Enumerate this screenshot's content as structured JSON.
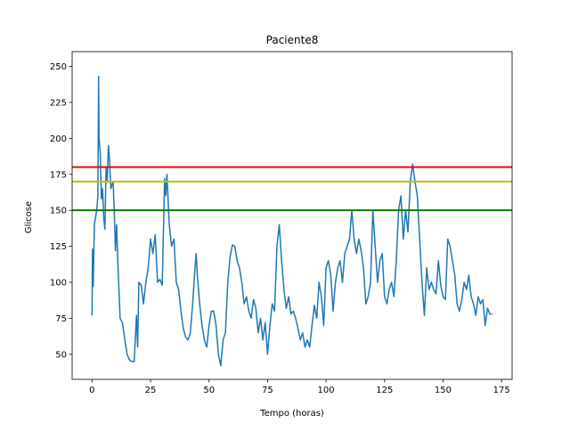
{
  "chart_data": {
    "type": "line",
    "title": "Paciente8",
    "xlabel": "Tempo (horas)",
    "ylabel": "Glicose",
    "x": [
      0,
      0.2,
      0.5,
      1,
      2,
      2.5,
      2.8,
      3,
      3.5,
      4,
      4.5,
      5,
      5.5,
      6,
      6.5,
      7,
      7.5,
      8,
      9,
      9.5,
      10,
      10.5,
      11,
      12,
      13,
      14,
      15,
      16,
      17,
      18,
      19,
      19.5,
      20,
      21,
      22,
      23,
      24,
      25,
      26,
      27,
      28,
      29,
      30,
      31,
      31.5,
      32,
      33,
      34,
      35,
      36,
      37,
      38,
      39,
      40,
      41,
      42,
      43,
      44,
      44.5,
      45,
      46,
      47,
      48,
      49,
      50,
      51,
      52,
      53,
      54,
      55,
      56,
      57,
      58,
      59,
      60,
      61,
      62,
      63,
      64,
      65,
      66,
      67,
      68,
      69,
      70,
      71,
      72,
      73,
      74,
      75,
      76,
      77,
      78,
      79,
      80,
      81,
      82,
      83,
      84,
      85,
      86,
      87,
      88,
      89,
      90,
      91,
      92,
      93,
      94,
      95,
      96,
      97,
      98,
      99,
      100,
      101,
      102,
      103,
      104,
      105,
      106,
      107,
      108,
      109,
      110,
      111,
      112,
      113,
      114,
      115,
      116,
      117,
      118,
      119,
      120,
      121,
      122,
      123,
      124,
      125,
      126,
      127,
      128,
      129,
      130,
      131,
      132,
      133,
      134,
      135,
      136,
      137,
      138,
      139,
      140,
      141,
      142,
      143,
      144,
      145,
      146,
      147,
      148,
      149,
      150,
      151,
      152,
      153,
      154,
      155,
      156,
      157,
      158,
      159,
      160,
      161,
      162,
      163,
      164,
      165,
      166,
      167,
      168,
      169,
      170,
      171
    ],
    "values": [
      77,
      123,
      97,
      140,
      150,
      160,
      243,
      200,
      190,
      158,
      165,
      145,
      137,
      180,
      170,
      195,
      185,
      165,
      170,
      150,
      122,
      140,
      115,
      75,
      72,
      60,
      50,
      46,
      45,
      45,
      77,
      55,
      100,
      98,
      85,
      100,
      110,
      130,
      120,
      133,
      100,
      102,
      98,
      172,
      160,
      175,
      140,
      125,
      130,
      100,
      95,
      80,
      68,
      62,
      60,
      65,
      85,
      110,
      120,
      105,
      85,
      70,
      60,
      55,
      70,
      80,
      80,
      70,
      50,
      42,
      60,
      65,
      100,
      118,
      126,
      125,
      115,
      110,
      100,
      85,
      90,
      80,
      75,
      88,
      82,
      65,
      75,
      60,
      72,
      50,
      70,
      85,
      80,
      125,
      140,
      115,
      95,
      82,
      90,
      78,
      80,
      75,
      68,
      60,
      65,
      55,
      60,
      55,
      70,
      84,
      75,
      100,
      90,
      70,
      110,
      115,
      105,
      80,
      100,
      110,
      115,
      100,
      120,
      125,
      130,
      150,
      130,
      120,
      130,
      122,
      110,
      85,
      90,
      100,
      150,
      125,
      100,
      115,
      120,
      90,
      85,
      95,
      100,
      90,
      115,
      150,
      160,
      130,
      150,
      135,
      170,
      182,
      170,
      160,
      130,
      100,
      77,
      110,
      95,
      100,
      95,
      92,
      115,
      98,
      90,
      88,
      130,
      125,
      115,
      105,
      85,
      80,
      88,
      100,
      95,
      105,
      90,
      85,
      77,
      90,
      85,
      88,
      70,
      82,
      78,
      78
    ],
    "color": "#1f77b4",
    "reference_lines": [
      {
        "value": 180,
        "color": "#ff0000"
      },
      {
        "value": 170,
        "color": "#bfbf00"
      },
      {
        "value": 150,
        "color": "#008000"
      }
    ],
    "xlim": [
      -8.5,
      179.5
    ],
    "ylim": [
      32.6,
      260.2
    ],
    "xticks": [
      0,
      25,
      50,
      75,
      100,
      125,
      150,
      175
    ],
    "yticks": [
      50,
      75,
      100,
      125,
      150,
      175,
      200,
      225,
      250
    ]
  }
}
